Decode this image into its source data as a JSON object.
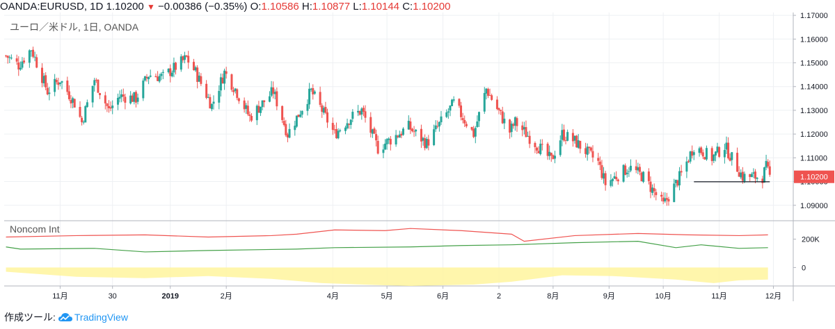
{
  "header": {
    "symbol": "OANDA:EURUSD, 1D",
    "last": "1.10200",
    "change": "−0.00386 (−0.35%)",
    "o_label": "O:",
    "o": "1.10586",
    "h_label": "H:",
    "h": "1.10877",
    "l_label": "L:",
    "l": "1.10144",
    "c_label": "C:",
    "c": "1.10200",
    "down_arrow": "▼"
  },
  "footer": {
    "made_with": "作成ツール:",
    "brand": "TradingView",
    "brand_icon": "cloud-icon"
  },
  "colors": {
    "up": "#26a69a",
    "down": "#ef5350",
    "grid": "#eef0f3",
    "axis": "#b2b5be",
    "longs": "#ef5350",
    "shorts": "#43a047",
    "net_fill": "#fff59d"
  },
  "chart_data": [
    {
      "type": "candlestick",
      "title": "ユーロ／米ドル, 1日, OANDA",
      "ylim": [
        1.0835,
        1.1712
      ],
      "yticks": [
        "1.09000",
        "1.10000",
        "1.11000",
        "1.12000",
        "1.13000",
        "1.14000",
        "1.15000",
        "1.16000",
        "1.17000"
      ],
      "last_price_label": "1.10200",
      "x_ticks": [
        "11月",
        "30",
        "2019",
        "2月",
        "4月",
        "5月",
        "6月",
        "2",
        "8月",
        "9月",
        "10月",
        "11月",
        "12月"
      ],
      "horizontal_line": {
        "value": 1.0999,
        "from": "2019-10-18",
        "to": "2019-11-29"
      },
      "keypoints": [
        [
          "2018-10-02",
          1.153
        ],
        [
          "2018-10-09",
          1.149
        ],
        [
          "2018-10-16",
          1.156
        ],
        [
          "2018-10-25",
          1.138
        ],
        [
          "2018-11-01",
          1.143
        ],
        [
          "2018-11-09",
          1.133
        ],
        [
          "2018-11-13",
          1.125
        ],
        [
          "2018-11-20",
          1.143
        ],
        [
          "2018-11-28",
          1.13
        ],
        [
          "2018-12-04",
          1.136
        ],
        [
          "2018-12-13",
          1.135
        ],
        [
          "2018-12-20",
          1.145
        ],
        [
          "2018-12-28",
          1.144
        ],
        [
          "2019-01-10",
          1.152
        ],
        [
          "2019-01-15",
          1.146
        ],
        [
          "2019-01-24",
          1.132
        ],
        [
          "2019-01-31",
          1.146
        ],
        [
          "2019-02-06",
          1.139
        ],
        [
          "2019-02-14",
          1.127
        ],
        [
          "2019-02-27",
          1.138
        ],
        [
          "2019-03-07",
          1.12
        ],
        [
          "2019-03-20",
          1.138
        ],
        [
          "2019-03-26",
          1.13
        ],
        [
          "2019-04-02",
          1.12
        ],
        [
          "2019-04-11",
          1.127
        ],
        [
          "2019-04-17",
          1.13
        ],
        [
          "2019-04-26",
          1.114
        ],
        [
          "2019-05-13",
          1.123
        ],
        [
          "2019-05-23",
          1.116
        ],
        [
          "2019-06-07",
          1.133
        ],
        [
          "2019-06-18",
          1.12
        ],
        [
          "2019-06-25",
          1.139
        ],
        [
          "2019-07-08",
          1.121
        ],
        [
          "2019-07-11",
          1.125
        ],
        [
          "2019-07-31",
          1.109
        ],
        [
          "2019-08-06",
          1.12
        ],
        [
          "2019-08-13",
          1.117
        ],
        [
          "2019-08-26",
          1.108
        ],
        [
          "2019-08-30",
          1.099
        ],
        [
          "2019-09-12",
          1.106
        ],
        [
          "2019-09-20",
          1.102
        ],
        [
          "2019-10-01",
          1.09
        ],
        [
          "2019-10-11",
          1.103
        ],
        [
          "2019-10-18",
          1.115
        ],
        [
          "2019-10-28",
          1.11
        ],
        [
          "2019-11-04",
          1.115
        ],
        [
          "2019-11-14",
          1.102
        ],
        [
          "2019-11-25",
          1.102
        ],
        [
          "2019-11-27",
          1.106
        ],
        [
          "2019-11-29",
          1.102
        ]
      ]
    },
    {
      "type": "line",
      "title": "Noncom Int",
      "ytick_labels": [
        "200K",
        "0"
      ],
      "ylim": [
        -130000,
        320000
      ],
      "series": [
        {
          "color": "#ef5350",
          "points": [
            [
              "2018-10-02",
              215000
            ],
            [
              "2018-11-10",
              225000
            ],
            [
              "2018-12-18",
              230000
            ],
            [
              "2019-01-22",
              215000
            ],
            [
              "2019-02-26",
              225000
            ],
            [
              "2019-03-12",
              235000
            ],
            [
              "2019-04-02",
              265000
            ],
            [
              "2019-04-30",
              260000
            ],
            [
              "2019-05-14",
              275000
            ],
            [
              "2019-06-11",
              260000
            ],
            [
              "2019-07-09",
              235000
            ],
            [
              "2019-07-16",
              185000
            ],
            [
              "2019-08-13",
              225000
            ],
            [
              "2019-09-17",
              240000
            ],
            [
              "2019-10-15",
              230000
            ],
            [
              "2019-11-12",
              225000
            ],
            [
              "2019-11-28",
              230000
            ]
          ]
        },
        {
          "color": "#43a047",
          "points": [
            [
              "2018-10-02",
              145000
            ],
            [
              "2018-10-10",
              130000
            ],
            [
              "2018-11-20",
              135000
            ],
            [
              "2018-12-18",
              110000
            ],
            [
              "2019-01-22",
              120000
            ],
            [
              "2019-03-12",
              130000
            ],
            [
              "2019-04-02",
              140000
            ],
            [
              "2019-05-14",
              145000
            ],
            [
              "2019-06-11",
              155000
            ],
            [
              "2019-07-09",
              160000
            ],
            [
              "2019-08-13",
              175000
            ],
            [
              "2019-09-17",
              185000
            ],
            [
              "2019-10-08",
              140000
            ],
            [
              "2019-10-22",
              160000
            ],
            [
              "2019-11-12",
              135000
            ],
            [
              "2019-11-28",
              140000
            ]
          ]
        },
        {
          "color": "#fff59d",
          "fill": true,
          "points": [
            [
              "2018-10-02",
              -30000
            ],
            [
              "2018-11-10",
              -65000
            ],
            [
              "2018-12-18",
              -75000
            ],
            [
              "2019-01-22",
              -60000
            ],
            [
              "2019-02-26",
              -80000
            ],
            [
              "2019-03-26",
              -110000
            ],
            [
              "2019-04-30",
              -125000
            ],
            [
              "2019-05-14",
              -130000
            ],
            [
              "2019-06-18",
              -120000
            ],
            [
              "2019-07-09",
              -100000
            ],
            [
              "2019-08-06",
              -55000
            ],
            [
              "2019-09-03",
              -60000
            ],
            [
              "2019-10-08",
              -85000
            ],
            [
              "2019-10-29",
              -110000
            ],
            [
              "2019-11-12",
              -90000
            ],
            [
              "2019-11-28",
              -85000
            ]
          ]
        }
      ]
    }
  ]
}
